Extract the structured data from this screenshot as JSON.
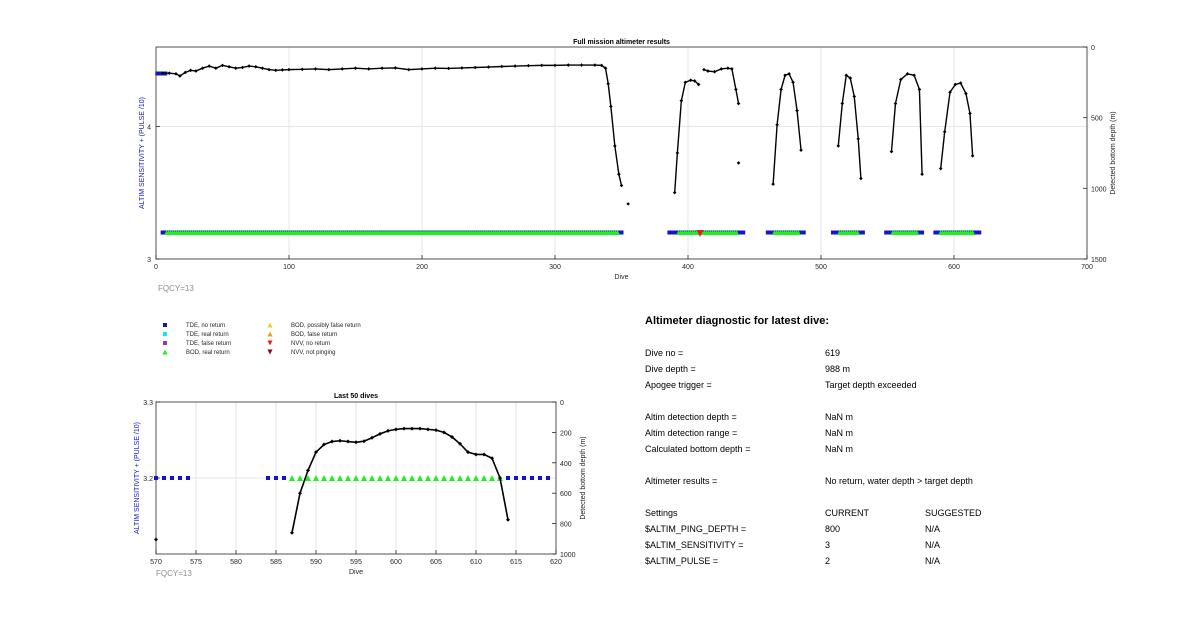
{
  "chart_data": [
    {
      "type": "scatter",
      "title": "Full mission altimeter results",
      "xlabel": "Dive",
      "ylabel": "ALTIM SENSITIVITY + (PULSE /10)",
      "y2label": "Detected bottom depth (m)",
      "xlim": [
        0,
        700
      ],
      "ylim": [
        3,
        4.6
      ],
      "y2lim": [
        1500,
        0
      ],
      "xticks": [
        "0",
        "100",
        "200",
        "300",
        "400",
        "500",
        "600",
        "700"
      ],
      "yticks": [
        "3",
        "4"
      ],
      "y2ticks": [
        "0",
        "500",
        "1000",
        "1500"
      ],
      "grid": true,
      "note": "FQCY=13",
      "series": [
        {
          "name": "Detected bottom depth",
          "marker": "diamond",
          "color": "#000000",
          "segments": [
            {
              "x": [
                5,
                10,
                15,
                18,
                22,
                26,
                30,
                35,
                40,
                45,
                50,
                55,
                60,
                65,
                70,
                75,
                80,
                85,
                90,
                95,
                100,
                110,
                120,
                130,
                140,
                150,
                160,
                170,
                180,
                190,
                200,
                210,
                220,
                230,
                240,
                250,
                260,
                270,
                280,
                290,
                300,
                310,
                320,
                330,
                335,
                338,
                340,
                342,
                345,
                348,
                350
              ],
              "y": [
                185,
                185,
                190,
                205,
                180,
                165,
                170,
                150,
                135,
                150,
                130,
                140,
                150,
                145,
                135,
                140,
                150,
                160,
                165,
                162,
                160,
                158,
                155,
                160,
                155,
                150,
                155,
                150,
                148,
                160,
                155,
                150,
                152,
                148,
                145,
                142,
                138,
                135,
                132,
                130,
                130,
                128,
                128,
                128,
                130,
                150,
                260,
                420,
                700,
                900,
                980
              ]
            },
            {
              "x": [
                355
              ],
              "y": [
                1110
              ]
            },
            {
              "x": [
                390,
                392,
                395,
                398,
                402,
                405,
                408
              ],
              "y": [
                1030,
                750,
                380,
                250,
                235,
                240,
                265
              ]
            },
            {
              "x": [
                412,
                415,
                420,
                425,
                430,
                433,
                436,
                438
              ],
              "y": [
                160,
                170,
                175,
                155,
                150,
                155,
                300,
                400
              ]
            },
            {
              "x": [
                438
              ],
              "y": [
                820
              ]
            },
            {
              "x": [
                464,
                467,
                470,
                473,
                476,
                479,
                482,
                485
              ],
              "y": [
                970,
                550,
                300,
                200,
                190,
                250,
                450,
                730
              ]
            },
            {
              "x": [
                513,
                516,
                519,
                522,
                525,
                528,
                530
              ],
              "y": [
                700,
                400,
                200,
                220,
                350,
                650,
                930
              ]
            },
            {
              "x": [
                553,
                556,
                560,
                565,
                570,
                574,
                576
              ],
              "y": [
                740,
                400,
                230,
                190,
                200,
                300,
                900
              ]
            },
            {
              "x": [
                590,
                593,
                597,
                601,
                605,
                609,
                612,
                614
              ],
              "y": [
                860,
                600,
                320,
                265,
                255,
                330,
                470,
                770
              ]
            }
          ]
        }
      ],
      "legend": [
        {
          "label": "TDE, no return",
          "marker": "square",
          "color": "#1515c8"
        },
        {
          "label": "TDE, real return",
          "marker": "square",
          "color": "#19e6e6"
        },
        {
          "label": "TDE, false return",
          "marker": "square",
          "color": "#7f3fbf"
        },
        {
          "label": "BOD, real return",
          "marker": "triangle-up",
          "color": "#22ee22"
        },
        {
          "label": "BOD, possibly false return",
          "marker": "triangle-up",
          "color": "#f2d21a"
        },
        {
          "label": "BOD, false return",
          "marker": "triangle-up",
          "color": "#f0a000"
        },
        {
          "label": "NVV, no return",
          "marker": "triangle-down",
          "color": "#e02020"
        },
        {
          "label": "NVV, not pinging",
          "marker": "triangle-down",
          "color": "#7a0a0a"
        }
      ],
      "blue_markers": {
        "x": [
          1,
          2,
          3,
          4,
          5,
          6,
          7
        ],
        "y": 4.4
      },
      "status_band": {
        "y": 3.2,
        "blue_runs": [
          [
            5,
            350
          ],
          [
            386,
            442
          ],
          [
            460,
            488
          ],
          [
            509,
            532
          ],
          [
            549,
            577
          ],
          [
            586,
            620
          ]
        ],
        "green_runs": [
          [
            8,
            348
          ],
          [
            393,
            437
          ],
          [
            465,
            483
          ],
          [
            514,
            528
          ],
          [
            554,
            573
          ],
          [
            590,
            614
          ]
        ],
        "red_point": {
          "x": 409,
          "y": 3.2
        }
      }
    },
    {
      "type": "scatter",
      "title": "Last 50 dives",
      "xlabel": "Dive",
      "ylabel": "ALTIM SENSITIVITY + (PULSE /10)",
      "y2label": "Detected bottom depth (m)",
      "xlim": [
        570,
        620
      ],
      "ylim": [
        3.1,
        3.3
      ],
      "y2lim": [
        1000,
        0
      ],
      "xticks": [
        "570",
        "575",
        "580",
        "585",
        "590",
        "595",
        "600",
        "605",
        "610",
        "615",
        "620"
      ],
      "yticks": [
        "3.2",
        "3.3"
      ],
      "y2ticks": [
        "0",
        "200",
        "400",
        "600",
        "800",
        "1000"
      ],
      "grid": true,
      "note": "FQCY=13",
      "series": [
        {
          "name": "Detected bottom depth",
          "color": "#000000",
          "x": [
            587,
            588,
            589,
            590,
            591,
            592,
            593,
            594,
            595,
            596,
            597,
            598,
            599,
            600,
            601,
            602,
            603,
            604,
            605,
            606,
            607,
            608,
            609,
            610,
            611,
            612,
            613,
            614
          ],
          "y": [
            860,
            600,
            450,
            330,
            280,
            260,
            255,
            260,
            265,
            258,
            235,
            210,
            190,
            180,
            175,
            175,
            175,
            180,
            185,
            200,
            230,
            275,
            330,
            345,
            345,
            370,
            500,
            775
          ]
        },
        {
          "name": "Isolated depth point",
          "color": "#000000",
          "x": [
            570
          ],
          "y": [
            905
          ]
        }
      ],
      "blue_squares": {
        "x": [
          570,
          571,
          572,
          573,
          574,
          584,
          585,
          586,
          614,
          615,
          616,
          617,
          618,
          619
        ],
        "y": 3.2
      },
      "green_triangles": {
        "x": [
          587,
          588,
          589,
          590,
          591,
          592,
          593,
          594,
          595,
          596,
          597,
          598,
          599,
          600,
          601,
          602,
          603,
          604,
          605,
          606,
          607,
          608,
          609,
          610,
          611,
          612,
          613
        ],
        "y": 3.2
      }
    }
  ],
  "diagnostic": {
    "title": "Altimeter diagnostic for latest dive:",
    "rows": [
      {
        "label": "Dive no =",
        "value": "619"
      },
      {
        "label": "Dive depth =",
        "value": "988 m"
      },
      {
        "label": "Apogee trigger =",
        "value": "Target depth exceeded"
      },
      {
        "label": "Altim detection depth =",
        "value": "NaN m"
      },
      {
        "label": "Altim detection range =",
        "value": "NaN m"
      },
      {
        "label": "Calculated bottom depth =",
        "value": "NaN m"
      },
      {
        "label": "Altimeter results =",
        "value": "No return, water depth > target depth"
      }
    ],
    "settings": {
      "header": {
        "label": "Settings",
        "current": "CURRENT",
        "suggested": "SUGGESTED"
      },
      "rows": [
        {
          "label": "$ALTIM_PING_DEPTH =",
          "current": "800",
          "suggested": "N/A"
        },
        {
          "label": "$ALTIM_SENSITIVITY =",
          "current": "3",
          "suggested": "N/A"
        },
        {
          "label": "$ALTIM_PULSE =",
          "current": "2",
          "suggested": "N/A"
        }
      ]
    }
  }
}
